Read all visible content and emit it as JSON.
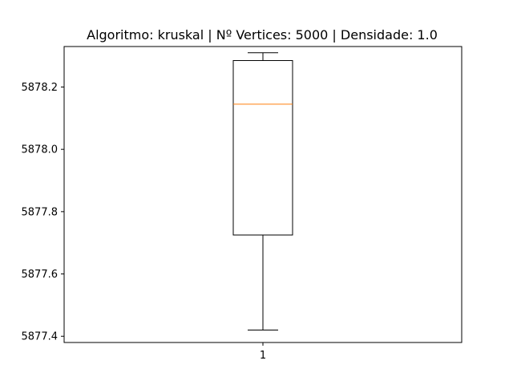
{
  "chart_data": {
    "type": "box",
    "title": "Algoritmo: kruskal | Nº Vertices: 5000 | Densidade: 1.0",
    "xlabel": "",
    "ylabel": "",
    "ylim": [
      5877.38,
      5878.33
    ],
    "y_ticks": [
      5877.4,
      5877.6,
      5877.8,
      5878.0,
      5878.2
    ],
    "y_tick_labels": [
      "5877.4",
      "5877.6",
      "5877.8",
      "5878.0",
      "5878.2"
    ],
    "x_ticks": [
      1
    ],
    "x_tick_labels": [
      "1"
    ],
    "grid": false,
    "colors": {
      "box": "#000000",
      "median": "#ff7f0e",
      "whisker": "#000000"
    },
    "boxes": [
      {
        "position": 1,
        "whisker_low": 5877.42,
        "q1": 5877.725,
        "median": 5878.145,
        "q3": 5878.285,
        "whisker_high": 5878.31
      }
    ]
  }
}
